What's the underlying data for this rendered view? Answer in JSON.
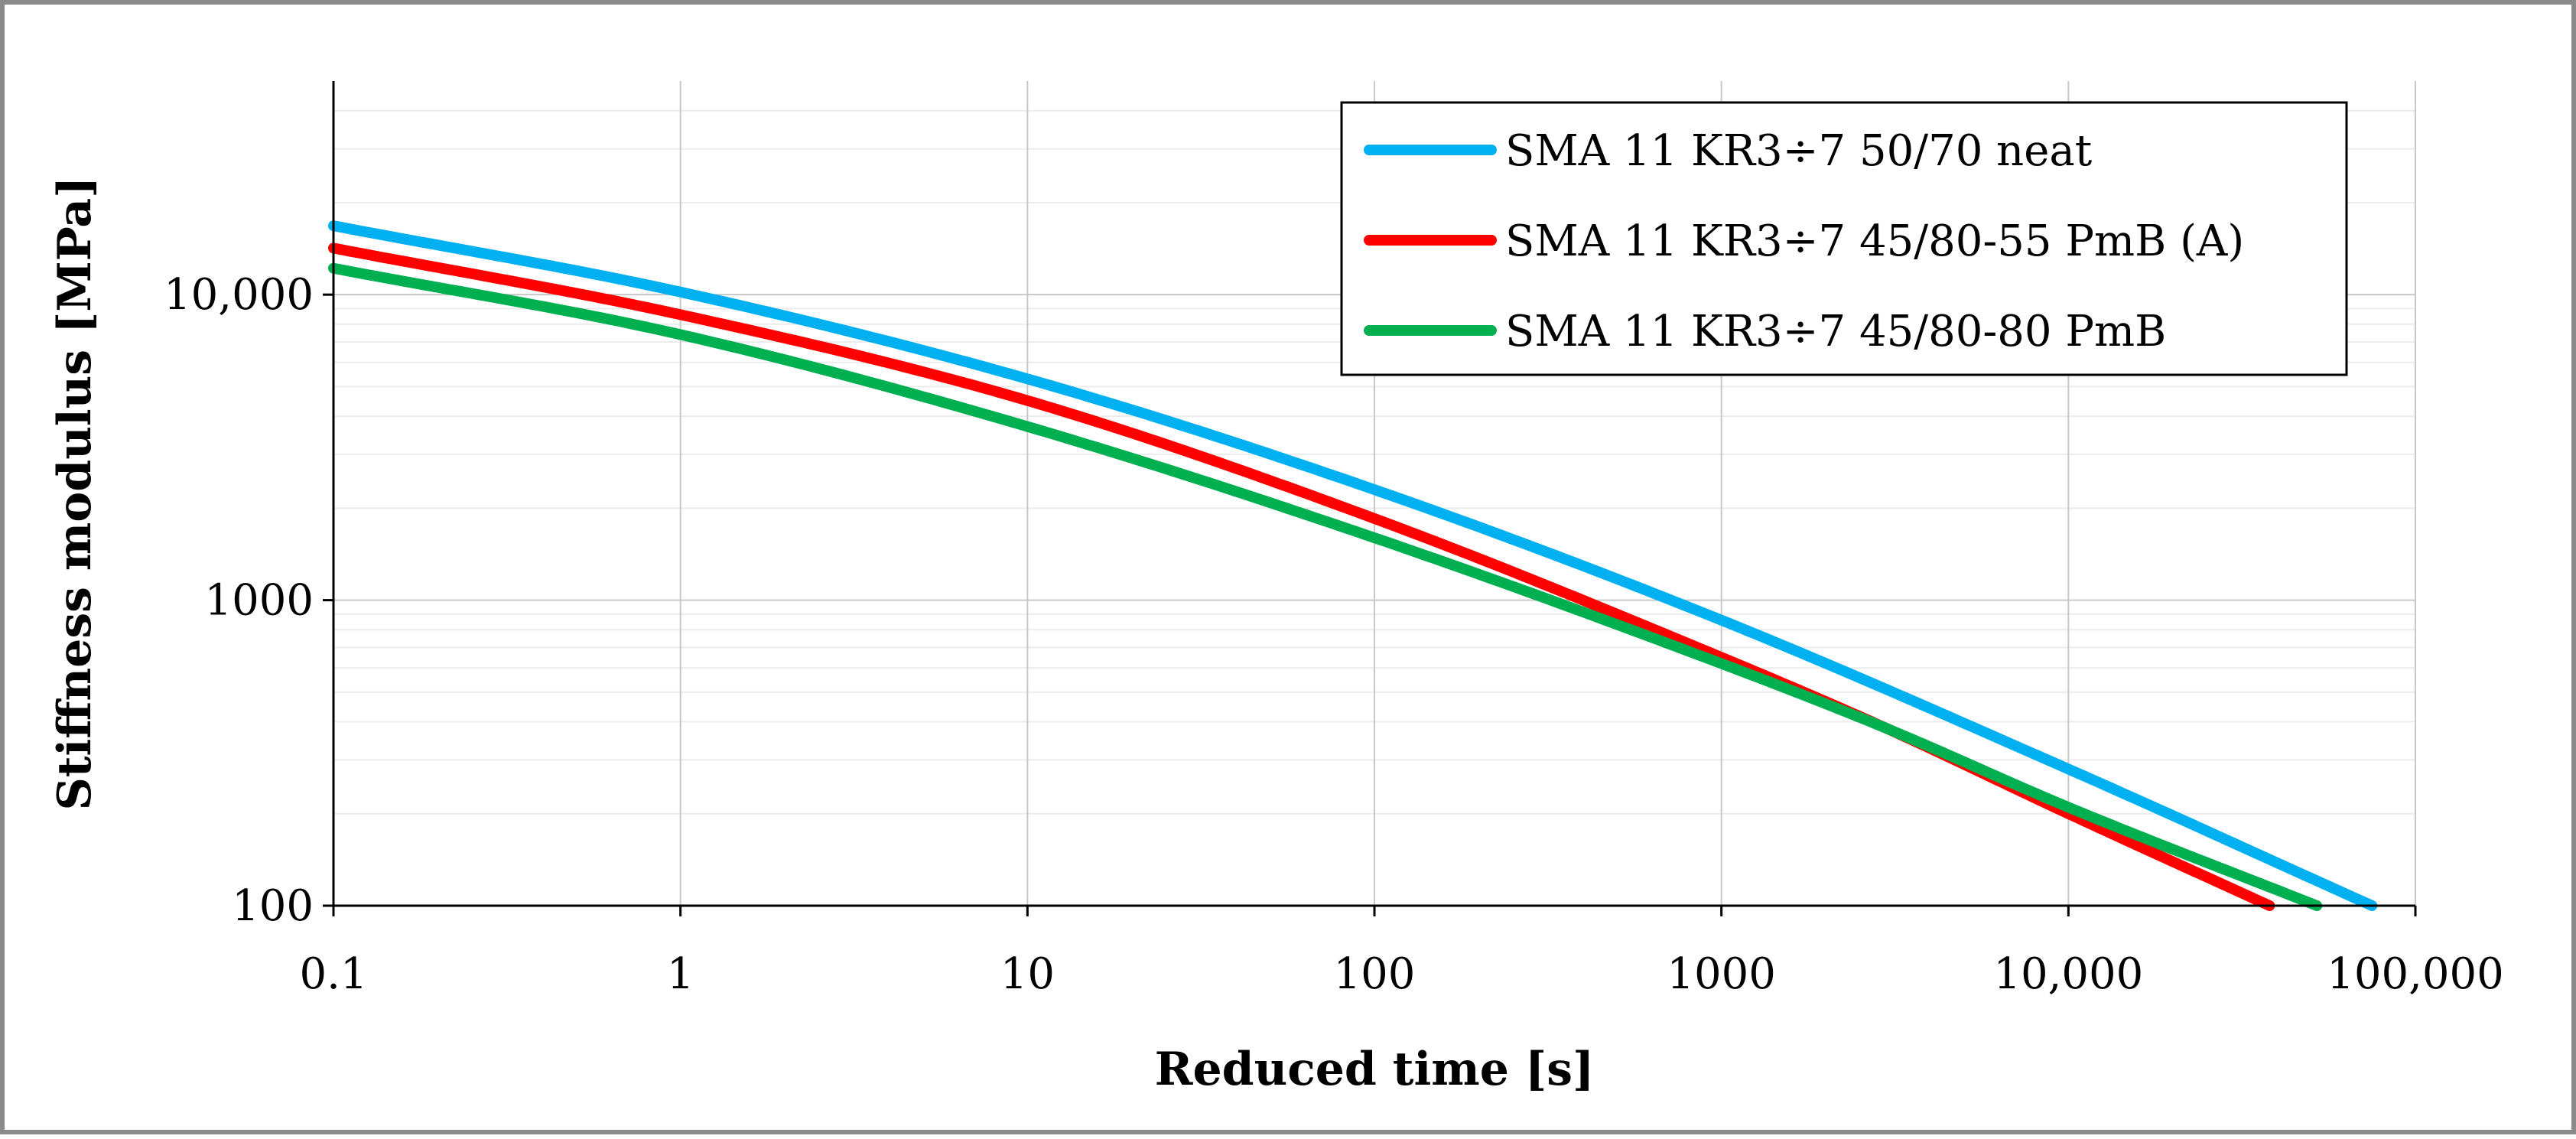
{
  "chart_data": {
    "type": "line",
    "title": "",
    "xlabel": "Reduced time [s]",
    "ylabel": "Stiffness modulus [MPa]",
    "xscale": "log",
    "yscale": "log",
    "xlim": [
      0.1,
      100000
    ],
    "ylim": [
      100,
      50000
    ],
    "x_ticks": [
      {
        "value": 0.1,
        "label": "0.1"
      },
      {
        "value": 1,
        "label": "1"
      },
      {
        "value": 10,
        "label": "10"
      },
      {
        "value": 100,
        "label": "100"
      },
      {
        "value": 1000,
        "label": "1000"
      },
      {
        "value": 10000,
        "label": "10,000"
      },
      {
        "value": 100000,
        "label": "100,000"
      }
    ],
    "y_ticks": [
      {
        "value": 100,
        "label": "100"
      },
      {
        "value": 1000,
        "label": "1000"
      },
      {
        "value": 10000,
        "label": "10,000"
      }
    ],
    "grid": true,
    "legend_position": "top-right",
    "series": [
      {
        "name": "SMA 11 KR3÷7 50/70 neat",
        "color": "#00b0f0",
        "x": [
          0.1,
          1,
          10,
          100,
          1000,
          10000,
          75000
        ],
        "y": [
          16800,
          10200,
          5300,
          2300,
          860,
          280,
          100
        ]
      },
      {
        "name": "SMA 11 KR3÷7 45/80-55 PmB (A)",
        "color": "#ff0000",
        "x": [
          0.1,
          1,
          10,
          100,
          1000,
          3000,
          10000,
          38000
        ],
        "y": [
          14200,
          8600,
          4500,
          1850,
          650,
          380,
          200,
          100
        ]
      },
      {
        "name": "SMA 11 KR3÷7 45/80-80 PmB",
        "color": "#00b050",
        "x": [
          0.1,
          1,
          10,
          100,
          1000,
          3000,
          10000,
          52000
        ],
        "y": [
          12200,
          7400,
          3700,
          1600,
          620,
          380,
          210,
          100
        ]
      }
    ]
  }
}
